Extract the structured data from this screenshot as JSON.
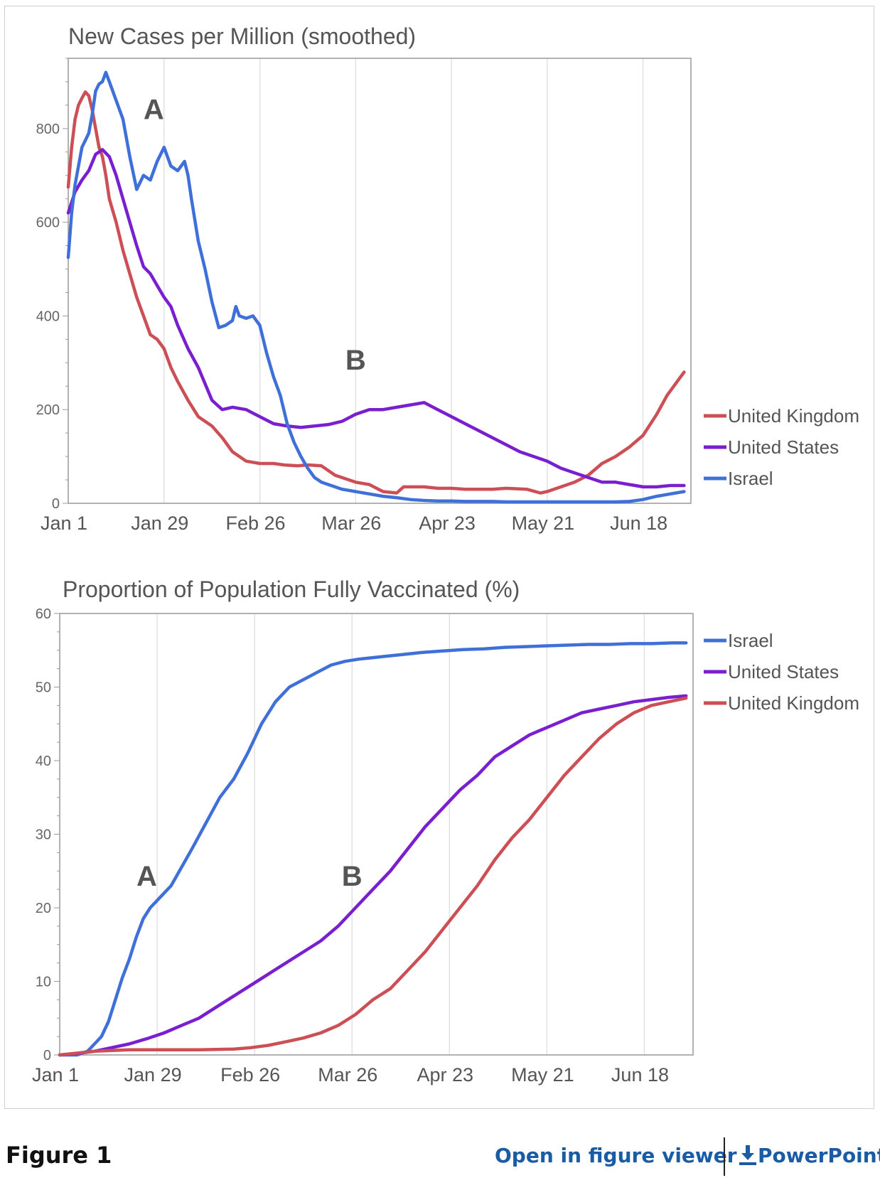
{
  "colors": {
    "united_kingdom": "#cc4f55",
    "united_states": "#7a1fcf",
    "israel": "#3f6fd8"
  },
  "chart_data": [
    {
      "type": "line",
      "title": "New Cases per Million (smoothed)",
      "x_unit": "days since Jan 1 2021",
      "xlim": [
        0,
        182
      ],
      "ylim": [
        0,
        950
      ],
      "yticks": [
        0,
        200,
        400,
        600,
        800
      ],
      "xticks": [
        {
          "label": "Jan 1",
          "value": 0
        },
        {
          "label": "Jan 29",
          "value": 28
        },
        {
          "label": "Feb 26",
          "value": 56
        },
        {
          "label": "Mar 26",
          "value": 84
        },
        {
          "label": "Apr 23",
          "value": 112
        },
        {
          "label": "May 21",
          "value": 140
        },
        {
          "label": "Jun 18",
          "value": 168
        }
      ],
      "legend": [
        "United Kingdom",
        "United States",
        "Israel"
      ],
      "annotations": [
        {
          "text": "A",
          "x": 25,
          "y": 820
        },
        {
          "text": "B",
          "x": 84,
          "y": 285
        }
      ],
      "series": [
        {
          "name": "United Kingdom",
          "color_key": "united_kingdom",
          "x": [
            0,
            1,
            2,
            3,
            4,
            5,
            6,
            7,
            8,
            9,
            10,
            11,
            12,
            14,
            16,
            18,
            20,
            22,
            24,
            26,
            28,
            30,
            32,
            35,
            38,
            42,
            45,
            48,
            52,
            56,
            60,
            63,
            67,
            70,
            74,
            78,
            84,
            88,
            92,
            96,
            98,
            101,
            104,
            108,
            112,
            116,
            120,
            124,
            128,
            134,
            138,
            140,
            144,
            148,
            152,
            156,
            160,
            164,
            168,
            172,
            175,
            178,
            180
          ],
          "y": [
            675,
            760,
            820,
            850,
            865,
            878,
            870,
            840,
            800,
            760,
            740,
            700,
            650,
            600,
            540,
            490,
            440,
            400,
            360,
            350,
            330,
            290,
            260,
            220,
            185,
            165,
            140,
            110,
            90,
            85,
            85,
            82,
            80,
            82,
            80,
            60,
            45,
            40,
            25,
            22,
            35,
            35,
            35,
            32,
            32,
            30,
            30,
            30,
            32,
            30,
            22,
            25,
            35,
            45,
            60,
            85,
            100,
            120,
            145,
            190,
            230,
            260,
            280
          ]
        },
        {
          "name": "United States",
          "color_key": "united_states",
          "x": [
            0,
            2,
            4,
            6,
            8,
            10,
            12,
            14,
            16,
            18,
            20,
            22,
            24,
            26,
            28,
            30,
            32,
            35,
            38,
            42,
            45,
            48,
            52,
            56,
            60,
            64,
            68,
            72,
            76,
            80,
            84,
            88,
            92,
            96,
            100,
            104,
            108,
            112,
            116,
            120,
            124,
            128,
            132,
            136,
            140,
            144,
            148,
            152,
            156,
            160,
            164,
            168,
            172,
            176,
            180
          ],
          "y": [
            620,
            665,
            690,
            710,
            745,
            755,
            740,
            700,
            650,
            600,
            550,
            505,
            490,
            465,
            440,
            420,
            380,
            330,
            290,
            220,
            200,
            205,
            200,
            185,
            170,
            165,
            162,
            165,
            168,
            175,
            190,
            200,
            200,
            205,
            210,
            215,
            200,
            185,
            170,
            155,
            140,
            125,
            110,
            100,
            90,
            75,
            65,
            55,
            45,
            45,
            40,
            35,
            35,
            38,
            38
          ]
        },
        {
          "name": "Israel",
          "color_key": "israel",
          "x": [
            0,
            1,
            2,
            3,
            4,
            5,
            6,
            7,
            8,
            9,
            10,
            11,
            12,
            14,
            15,
            16,
            18,
            20,
            22,
            24,
            26,
            28,
            30,
            32,
            34,
            35,
            36,
            38,
            40,
            42,
            44,
            46,
            48,
            49,
            50,
            52,
            54,
            56,
            58,
            60,
            62,
            64,
            66,
            68,
            70,
            72,
            74,
            76,
            78,
            80,
            84,
            88,
            92,
            96,
            100,
            104,
            108,
            112,
            116,
            120,
            124,
            128,
            132,
            136,
            140,
            144,
            148,
            152,
            156,
            160,
            164,
            168,
            172,
            176,
            180
          ],
          "y": [
            525,
            620,
            680,
            720,
            760,
            775,
            790,
            830,
            880,
            895,
            900,
            920,
            900,
            860,
            840,
            820,
            740,
            670,
            700,
            690,
            730,
            760,
            720,
            710,
            730,
            700,
            650,
            560,
            500,
            430,
            375,
            380,
            390,
            420,
            400,
            395,
            400,
            380,
            320,
            270,
            230,
            170,
            130,
            100,
            75,
            55,
            45,
            40,
            35,
            30,
            25,
            20,
            15,
            12,
            8,
            6,
            5,
            5,
            4,
            4,
            4,
            3,
            3,
            3,
            3,
            3,
            3,
            3,
            3,
            3,
            4,
            8,
            15,
            20,
            25
          ]
        }
      ]
    },
    {
      "type": "line",
      "title": "Proportion of Population Fully Vaccinated (%)",
      "x_unit": "days since Jan 1 2021",
      "xlim": [
        0,
        182
      ],
      "ylim": [
        0,
        60
      ],
      "yticks": [
        0,
        10,
        20,
        30,
        40,
        50,
        60
      ],
      "xticks": [
        {
          "label": "Jan 1",
          "value": 0
        },
        {
          "label": "Jan 29",
          "value": 28
        },
        {
          "label": "Feb 26",
          "value": 56
        },
        {
          "label": "Mar 26",
          "value": 84
        },
        {
          "label": "Apr 23",
          "value": 112
        },
        {
          "label": "May 21",
          "value": 140
        },
        {
          "label": "Jun 18",
          "value": 168
        }
      ],
      "legend": [
        "Israel",
        "United States",
        "United Kingdom"
      ],
      "annotations": [
        {
          "text": "A",
          "x": 25,
          "y": 23
        },
        {
          "text": "B",
          "x": 84,
          "y": 23
        }
      ],
      "series": [
        {
          "name": "Israel",
          "color_key": "israel",
          "x": [
            0,
            5,
            8,
            10,
            12,
            14,
            16,
            18,
            20,
            22,
            24,
            26,
            28,
            30,
            32,
            35,
            38,
            42,
            46,
            50,
            54,
            58,
            62,
            66,
            70,
            74,
            78,
            82,
            86,
            90,
            94,
            98,
            104,
            110,
            116,
            122,
            128,
            134,
            140,
            146,
            152,
            158,
            164,
            170,
            176,
            180
          ],
          "y": [
            0,
            0,
            0.5,
            1.5,
            2.5,
            4.5,
            7.5,
            10.5,
            13,
            16,
            18.5,
            20,
            21,
            22,
            23,
            25.5,
            28,
            31.5,
            35,
            37.5,
            41,
            45,
            48,
            50,
            51,
            52,
            53,
            53.5,
            53.8,
            54,
            54.2,
            54.4,
            54.7,
            54.9,
            55.1,
            55.2,
            55.4,
            55.5,
            55.6,
            55.7,
            55.8,
            55.8,
            55.9,
            55.9,
            56,
            56
          ]
        },
        {
          "name": "United States",
          "color_key": "united_states",
          "x": [
            0,
            5,
            10,
            15,
            20,
            25,
            30,
            35,
            40,
            45,
            50,
            55,
            60,
            65,
            70,
            75,
            80,
            85,
            90,
            95,
            100,
            105,
            110,
            115,
            120,
            125,
            130,
            135,
            140,
            145,
            150,
            155,
            160,
            165,
            170,
            175,
            180
          ],
          "y": [
            0,
            0.2,
            0.5,
            1,
            1.5,
            2.2,
            3,
            4,
            5,
            6.5,
            8,
            9.5,
            11,
            12.5,
            14,
            15.5,
            17.5,
            20,
            22.5,
            25,
            28,
            31,
            33.5,
            36,
            38,
            40.5,
            42,
            43.5,
            44.5,
            45.5,
            46.5,
            47,
            47.5,
            48,
            48.3,
            48.6,
            48.8
          ]
        },
        {
          "name": "United Kingdom",
          "color_key": "united_kingdom",
          "x": [
            0,
            10,
            20,
            30,
            40,
            50,
            55,
            60,
            65,
            70,
            75,
            80,
            85,
            90,
            95,
            100,
            105,
            110,
            115,
            120,
            125,
            130,
            135,
            140,
            145,
            150,
            155,
            160,
            165,
            170,
            175,
            180
          ],
          "y": [
            0,
            0.5,
            0.7,
            0.7,
            0.7,
            0.8,
            1,
            1.3,
            1.8,
            2.3,
            3,
            4,
            5.5,
            7.5,
            9,
            11.5,
            14,
            17,
            20,
            23,
            26.5,
            29.5,
            32,
            35,
            38,
            40.5,
            43,
            45,
            46.5,
            47.5,
            48,
            48.5
          ]
        }
      ]
    }
  ],
  "footer": {
    "figure_label": "Figure 1",
    "open_viewer": "Open in figure viewer",
    "powerpoint": "PowerPoint"
  }
}
